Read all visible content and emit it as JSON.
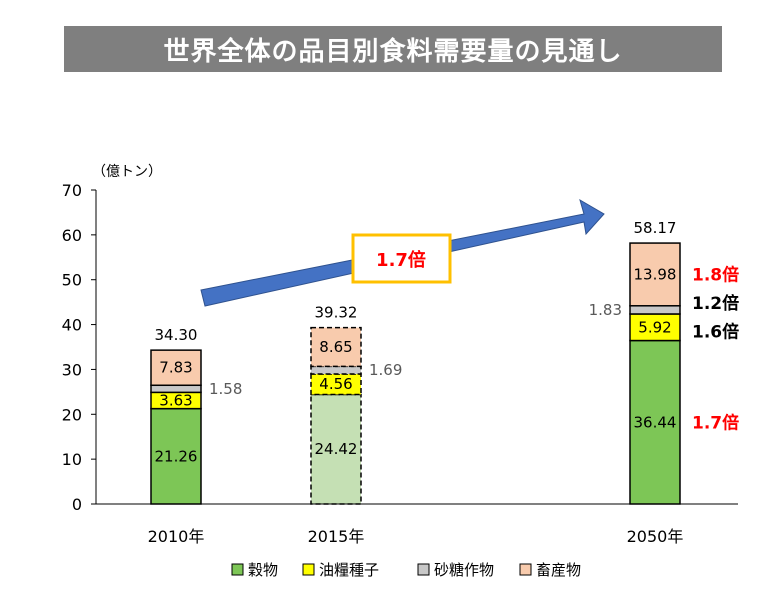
{
  "title": "世界全体の品目別食料需要量の見通し",
  "chart_data": {
    "type": "bar",
    "stacked": true,
    "unit_label": "（億トン）",
    "categories": [
      "2010年",
      "2015年",
      "2050年"
    ],
    "ylim": [
      0,
      70
    ],
    "yticks": [
      0,
      10,
      20,
      30,
      40,
      50,
      60,
      70
    ],
    "grid": false,
    "legend_position": "bottom",
    "series": [
      {
        "name": "穀物",
        "color": "#7dc656",
        "values": [
          21.26,
          24.42,
          36.44
        ],
        "labels": [
          "21.26",
          "24.42",
          "36.44"
        ]
      },
      {
        "name": "油糧種子",
        "color": "#ffff00",
        "values": [
          3.63,
          4.56,
          5.92
        ],
        "labels": [
          "3.63",
          "4.56",
          "5.92"
        ]
      },
      {
        "name": "砂糖作物",
        "color": "#c8c8c8",
        "values": [
          1.58,
          1.69,
          1.83
        ],
        "labels": [
          "1.58",
          "1.69",
          "1.83"
        ]
      },
      {
        "name": "畜産物",
        "color": "#f8cbad",
        "values": [
          7.83,
          8.65,
          13.98
        ],
        "labels": [
          "7.83",
          "8.65",
          "13.98"
        ]
      }
    ],
    "totals": [
      "34.30",
      "39.32",
      "58.17"
    ],
    "projected_category": "2015年",
    "arrow_label": "1.7倍",
    "growth_annotations": [
      {
        "series": "畜産物",
        "text": "1.8倍",
        "color": "#ff0000"
      },
      {
        "series": "砂糖作物",
        "text": "1.2倍",
        "color": "#000000"
      },
      {
        "series": "油糧種子",
        "text": "1.6倍",
        "color": "#000000"
      },
      {
        "series": "穀物",
        "text": "1.7倍",
        "color": "#ff0000"
      }
    ],
    "arrow_color": "#4472c4",
    "arrow_box_color": "#ffc000"
  }
}
